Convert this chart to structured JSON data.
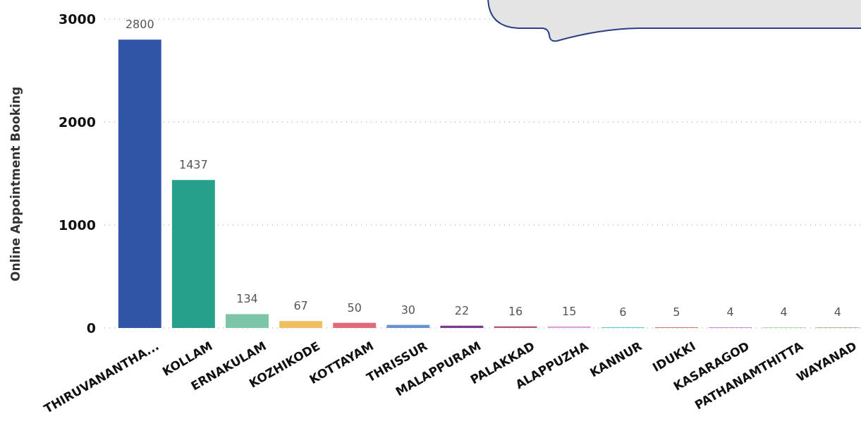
{
  "chart_data": {
    "type": "bar",
    "ylabel": "Online Appointment Booking",
    "categories": [
      "THIRUVANANTHA...",
      "KOLLAM",
      "ERNAKULAM",
      "KOZHIKODE",
      "KOTTAYAM",
      "THRISSUR",
      "MALAPPURAM",
      "PALAKKAD",
      "ALAPPUZHA",
      "KANNUR",
      "IDUKKI",
      "KASARAGOD",
      "PATHANAMTHITTA",
      "WAYANAD"
    ],
    "values": [
      2800,
      1437,
      134,
      67,
      50,
      30,
      22,
      16,
      15,
      6,
      5,
      4,
      4,
      4
    ],
    "colors": [
      "#3155a6",
      "#26a08a",
      "#7cc5a8",
      "#f0c060",
      "#e06a7a",
      "#6b92d0",
      "#7b3a8a",
      "#b45a78",
      "#e2a0d8",
      "#3cc8c8",
      "#d04040",
      "#a040c8",
      "#70d060",
      "#808060"
    ],
    "ylim": [
      0,
      3000
    ],
    "yticks": [
      0,
      1000,
      2000,
      3000
    ],
    "grid": "y",
    "data_labels": true
  }
}
